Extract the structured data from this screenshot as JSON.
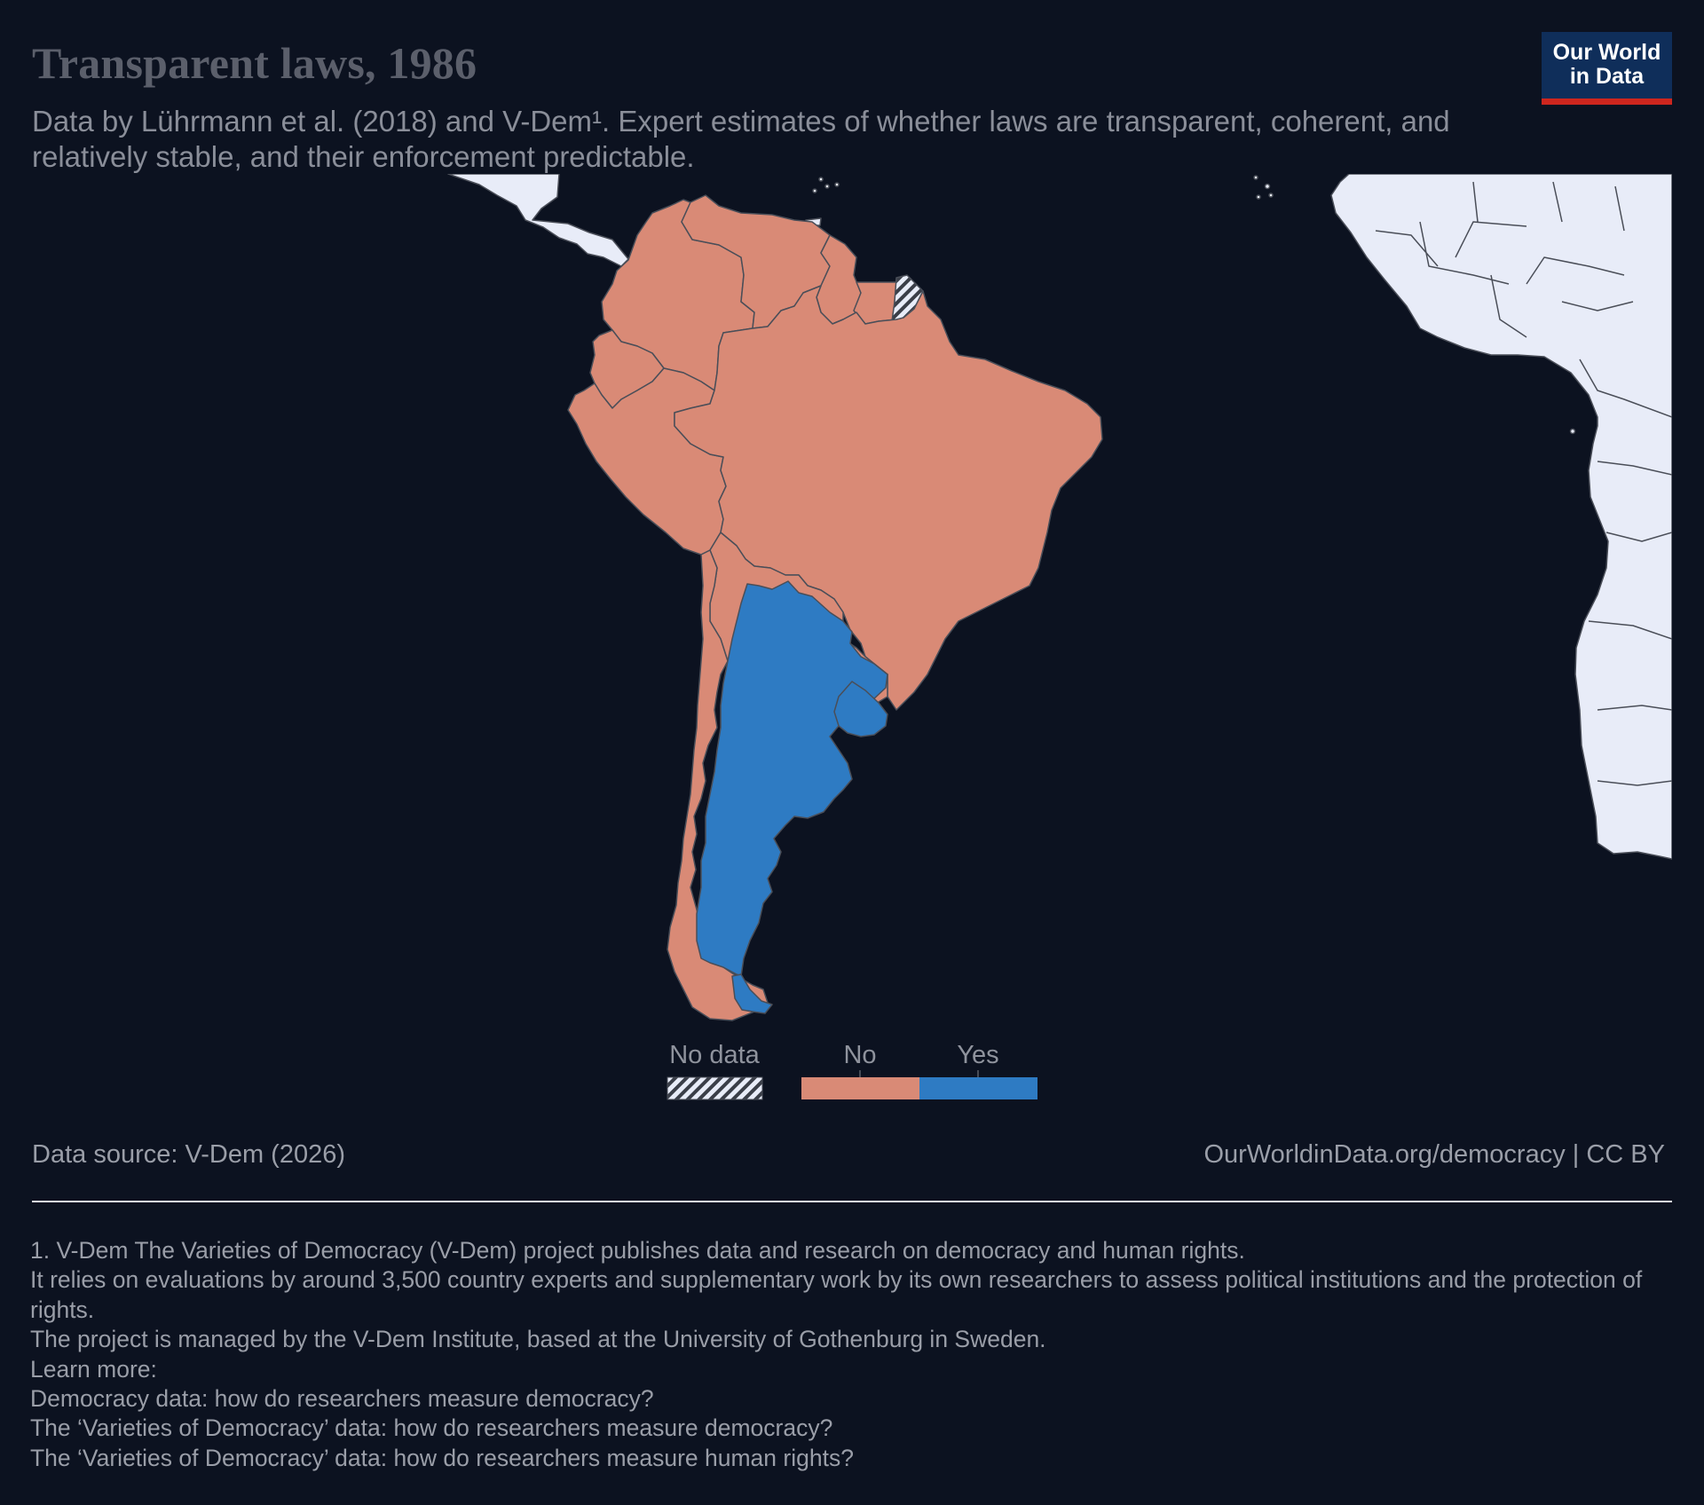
{
  "title": "Transparent laws, 1986",
  "subtitle": "Data by Lührmann et al. (2018) and V-Dem¹. Expert estimates of whether laws are transparent, coherent, and relatively stable, and their enforcement predictable.",
  "logo": {
    "line1": "Our World",
    "line2": "in Data"
  },
  "colors": {
    "background": "#0c1220",
    "no": "#d98a76",
    "yes": "#2e7bc3",
    "other_land": "#e8ecf8",
    "border": "#4a4e58",
    "logo_bg": "#0f2e5a",
    "logo_accent": "#ce261e"
  },
  "legend": {
    "no_data_label": "No data",
    "categories": [
      {
        "label": "No",
        "color": "#d98a76"
      },
      {
        "label": "Yes",
        "color": "#2e7bc3"
      }
    ]
  },
  "map_data": {
    "year": 1986,
    "regions": [
      {
        "name": "Argentina",
        "value": "Yes"
      },
      {
        "name": "Uruguay",
        "value": "Yes"
      },
      {
        "name": "Chile",
        "value": "No"
      },
      {
        "name": "Brazil",
        "value": "No"
      },
      {
        "name": "Paraguay",
        "value": "No"
      },
      {
        "name": "Bolivia",
        "value": "No"
      },
      {
        "name": "Peru",
        "value": "No"
      },
      {
        "name": "Ecuador",
        "value": "No"
      },
      {
        "name": "Colombia",
        "value": "No"
      },
      {
        "name": "Venezuela",
        "value": "No"
      },
      {
        "name": "Guyana",
        "value": "No"
      },
      {
        "name": "Suriname",
        "value": "No"
      },
      {
        "name": "French Guiana",
        "value": "No data"
      }
    ]
  },
  "footer": {
    "source": "Data source: V-Dem (2026)",
    "url": "OurWorldinData.org/democracy | CC BY"
  },
  "notes": [
    "1. V-Dem The Varieties of Democracy (V-Dem) project publishes data and research on democracy and human rights.",
    "It relies on evaluations by around 3,500 country experts and supplementary work by its own researchers to assess political institutions and the protection of rights.",
    "The project is managed by the V-Dem Institute, based at the University of Gothenburg in Sweden.",
    "Learn more:",
    "Democracy data: how do researchers measure democracy?",
    "The ‘Varieties of Democracy’ data: how do researchers measure democracy?",
    "The ‘Varieties of Democracy’ data: how do researchers measure human rights?"
  ]
}
